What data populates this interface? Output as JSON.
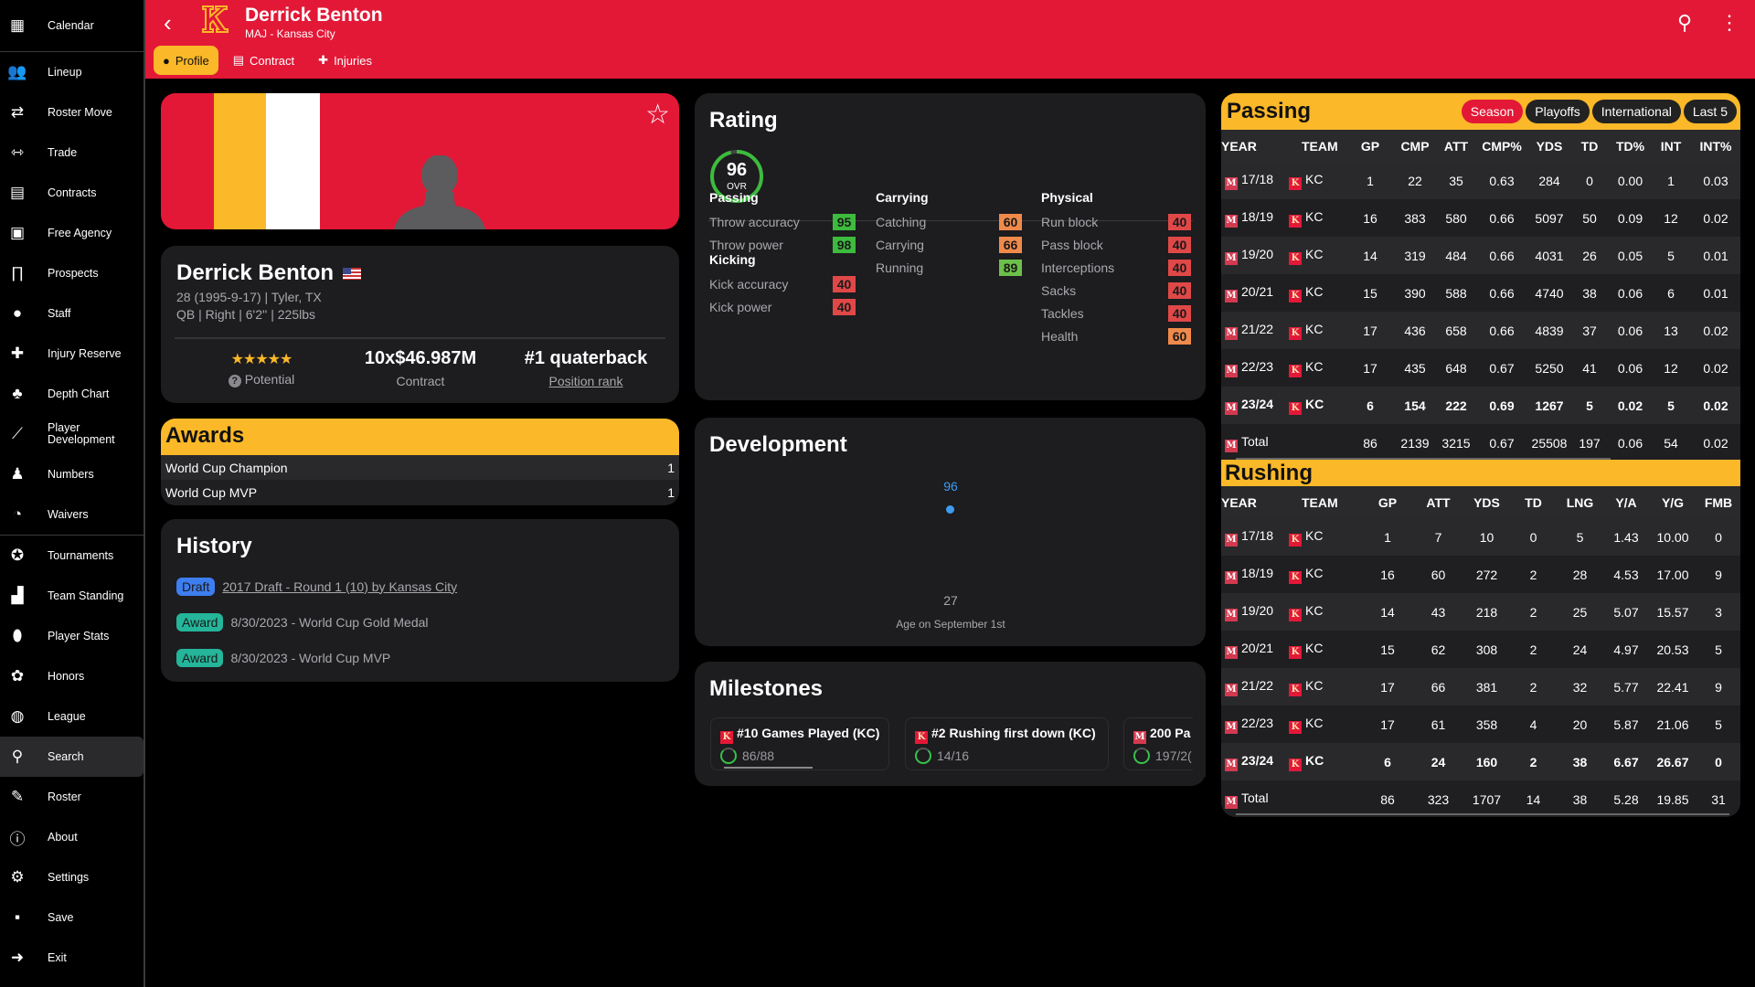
{
  "sidebar": {
    "top": [
      {
        "label": "Calendar",
        "icon": "calendar-icon",
        "glyph": "▦"
      }
    ],
    "group1": [
      {
        "label": "Lineup",
        "icon": "users-icon",
        "glyph": "👥"
      },
      {
        "label": "Roster Move",
        "icon": "arrows-swap-icon",
        "glyph": "⇄"
      },
      {
        "label": "Trade",
        "icon": "trade-icon",
        "glyph": "⇿"
      },
      {
        "label": "Contracts",
        "icon": "contract-file-icon",
        "glyph": "▤"
      },
      {
        "label": "Free Agency",
        "icon": "money-icon",
        "glyph": "▣"
      },
      {
        "label": "Prospects",
        "icon": "binoculars-icon",
        "glyph": "∏"
      },
      {
        "label": "Staff",
        "icon": "staff-icon",
        "glyph": "●"
      },
      {
        "label": "Injury Reserve",
        "icon": "injured-user-icon",
        "glyph": "✚"
      },
      {
        "label": "Depth Chart",
        "icon": "sitemap-icon",
        "glyph": "♣"
      },
      {
        "label": "Player Development",
        "icon": "chart-line-icon",
        "glyph": "⟋"
      },
      {
        "label": "Numbers",
        "icon": "shirt-icon",
        "glyph": "♟"
      },
      {
        "label": "Waivers",
        "icon": "user-clock-icon",
        "glyph": "◔"
      }
    ],
    "group2": [
      {
        "label": "Tournaments",
        "icon": "medal-icon",
        "glyph": "✪"
      },
      {
        "label": "Team Standing",
        "icon": "podium-icon",
        "glyph": "▟"
      },
      {
        "label": "Player Stats",
        "icon": "football-icon",
        "glyph": "⬮"
      },
      {
        "label": "Honors",
        "icon": "award-icon",
        "glyph": "✿"
      },
      {
        "label": "League",
        "icon": "globe-icon",
        "glyph": "◍"
      },
      {
        "label": "Search",
        "icon": "search-icon",
        "glyph": "⚲",
        "active": true
      },
      {
        "label": "Roster",
        "icon": "user-pen-icon",
        "glyph": "✎"
      },
      {
        "label": "About",
        "icon": "info-icon",
        "glyph": "ⓘ"
      },
      {
        "label": "Settings",
        "icon": "gear-icon",
        "glyph": "⚙"
      },
      {
        "label": "Save",
        "icon": "floppy-icon",
        "glyph": "▪"
      },
      {
        "label": "Exit",
        "icon": "exit-icon",
        "glyph": "➜"
      }
    ]
  },
  "header": {
    "title": "Derrick Benton",
    "subtitle": "MAJ - Kansas City",
    "team_logo_letter": "K",
    "tabs": [
      {
        "label": "Profile",
        "icon": "user-circle-icon",
        "active": true
      },
      {
        "label": "Contract",
        "icon": "contract-file-icon"
      },
      {
        "label": "Injuries",
        "icon": "injured-user-icon"
      }
    ]
  },
  "colors": {
    "brand_red": "#e31837",
    "brand_yellow": "#fbb828",
    "good": "#3dbb3d",
    "ok": "#6cc04a",
    "mid": "#f08a4b",
    "bad": "#e04848"
  },
  "profile": {
    "name": "Derrick Benton",
    "flag": "us-flag-icon",
    "line1": "28 (1995-9-17) | Tyler, TX",
    "line2": "QB | Right | 6'2'' | 225lbs",
    "potential_stars": 5,
    "potential_label": "Potential",
    "contract_value": "10x$46.987M",
    "contract_label": "Contract",
    "rank_value": "#1 quaterback",
    "rank_label": "Position rank"
  },
  "awards": {
    "title": "Awards",
    "items": [
      {
        "name": "World Cup Champion",
        "count": "1"
      },
      {
        "name": "World Cup MVP",
        "count": "1"
      }
    ]
  },
  "history": {
    "title": "History",
    "items": [
      {
        "tag": "Draft",
        "tag_color": "#3d7ef0",
        "text": "2017 Draft - Round 1 (10) by Kansas City",
        "link": true
      },
      {
        "tag": "Award",
        "tag_color": "#25b59a",
        "text": "8/30/2023 - World Cup Gold Medal"
      },
      {
        "tag": "Award",
        "tag_color": "#25b59a",
        "text": "8/30/2023 - World Cup MVP"
      }
    ]
  },
  "rating": {
    "title": "Rating",
    "ovr": "96",
    "ovr_label": "OVR",
    "groups": [
      {
        "name": "Passing",
        "attrs": [
          {
            "name": "Throw accuracy",
            "value": "95",
            "level": "good"
          },
          {
            "name": "Throw power",
            "value": "98",
            "level": "good"
          }
        ]
      },
      {
        "name": "Kicking",
        "attrs": [
          {
            "name": "Kick accuracy",
            "value": "40",
            "level": "bad"
          },
          {
            "name": "Kick power",
            "value": "40",
            "level": "bad"
          }
        ]
      },
      {
        "name": "Carrying",
        "attrs": [
          {
            "name": "Catching",
            "value": "60",
            "level": "mid"
          },
          {
            "name": "Carrying",
            "value": "66",
            "level": "mid"
          },
          {
            "name": "Running",
            "value": "89",
            "level": "ok"
          }
        ]
      },
      {
        "name": "Physical",
        "attrs": [
          {
            "name": "Run block",
            "value": "40",
            "level": "bad"
          },
          {
            "name": "Pass block",
            "value": "40",
            "level": "bad"
          },
          {
            "name": "Interceptions",
            "value": "40",
            "level": "bad"
          },
          {
            "name": "Sacks",
            "value": "40",
            "level": "bad"
          },
          {
            "name": "Tackles",
            "value": "40",
            "level": "bad"
          },
          {
            "name": "Health",
            "value": "60",
            "level": "mid"
          }
        ]
      }
    ]
  },
  "development": {
    "title": "Development",
    "point_value": "96",
    "age": "27",
    "xlabel": "Age on September 1st"
  },
  "milestones": {
    "title": "Milestones",
    "items": [
      {
        "title": "#10 Games Played (KC)",
        "progress": "86/88",
        "icon": "team-k-icon"
      },
      {
        "title": "#2 Rushing first down (KC)",
        "progress": "14/16",
        "icon": "team-k-icon"
      },
      {
        "title": "200 Pa",
        "progress": "197/2(",
        "icon": "league-m-icon"
      }
    ]
  },
  "passing": {
    "title": "Passing",
    "filters": [
      {
        "label": "Season",
        "active": true
      },
      {
        "label": "Playoffs"
      },
      {
        "label": "International"
      },
      {
        "label": "Last 5"
      }
    ],
    "columns": [
      "YEAR",
      "TEAM",
      "GP",
      "CMP",
      "ATT",
      "CMP%",
      "YDS",
      "TD",
      "TD%",
      "INT",
      "INT%"
    ],
    "rows": [
      [
        "17/18",
        "KC",
        "1",
        "22",
        "35",
        "0.63",
        "284",
        "0",
        "0.00",
        "1",
        "0.03"
      ],
      [
        "18/19",
        "KC",
        "16",
        "383",
        "580",
        "0.66",
        "5097",
        "50",
        "0.09",
        "12",
        "0.02"
      ],
      [
        "19/20",
        "KC",
        "14",
        "319",
        "484",
        "0.66",
        "4031",
        "26",
        "0.05",
        "5",
        "0.01"
      ],
      [
        "20/21",
        "KC",
        "15",
        "390",
        "588",
        "0.66",
        "4740",
        "38",
        "0.06",
        "6",
        "0.01"
      ],
      [
        "21/22",
        "KC",
        "17",
        "436",
        "658",
        "0.66",
        "4839",
        "37",
        "0.06",
        "13",
        "0.02"
      ],
      [
        "22/23",
        "KC",
        "17",
        "435",
        "648",
        "0.67",
        "5250",
        "41",
        "0.06",
        "12",
        "0.02"
      ],
      [
        "23/24",
        "KC",
        "6",
        "154",
        "222",
        "0.69",
        "1267",
        "5",
        "0.02",
        "5",
        "0.02"
      ],
      [
        "Total",
        "",
        "86",
        "2139",
        "3215",
        "0.67",
        "25508",
        "197",
        "0.06",
        "54",
        "0.02"
      ]
    ]
  },
  "rushing": {
    "title": "Rushing",
    "columns": [
      "YEAR",
      "TEAM",
      "GP",
      "ATT",
      "YDS",
      "TD",
      "LNG",
      "Y/A",
      "Y/G",
      "FMB"
    ],
    "rows": [
      [
        "17/18",
        "KC",
        "1",
        "7",
        "10",
        "0",
        "5",
        "1.43",
        "10.00",
        "0"
      ],
      [
        "18/19",
        "KC",
        "16",
        "60",
        "272",
        "2",
        "28",
        "4.53",
        "17.00",
        "9"
      ],
      [
        "19/20",
        "KC",
        "14",
        "43",
        "218",
        "2",
        "25",
        "5.07",
        "15.57",
        "3"
      ],
      [
        "20/21",
        "KC",
        "15",
        "62",
        "308",
        "2",
        "24",
        "4.97",
        "20.53",
        "5"
      ],
      [
        "21/22",
        "KC",
        "17",
        "66",
        "381",
        "2",
        "32",
        "5.77",
        "22.41",
        "9"
      ],
      [
        "22/23",
        "KC",
        "17",
        "61",
        "358",
        "4",
        "20",
        "5.87",
        "21.06",
        "5"
      ],
      [
        "23/24",
        "KC",
        "6",
        "24",
        "160",
        "2",
        "38",
        "6.67",
        "26.67",
        "0"
      ],
      [
        "Total",
        "",
        "86",
        "323",
        "1707",
        "14",
        "38",
        "5.28",
        "19.85",
        "31"
      ]
    ]
  }
}
